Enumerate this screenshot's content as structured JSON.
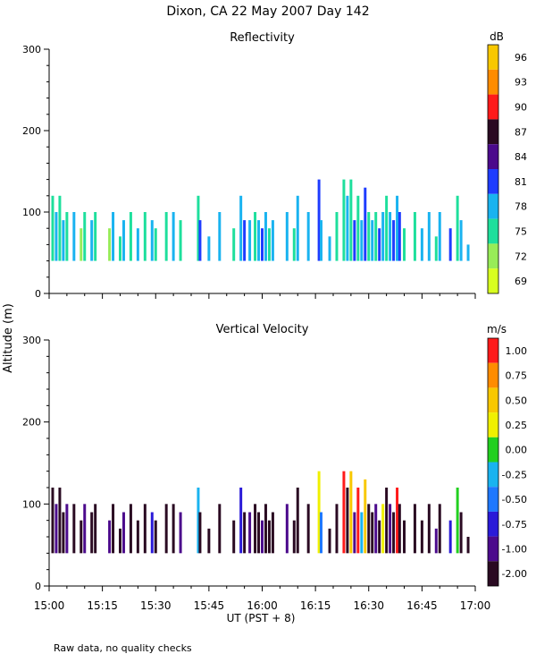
{
  "title": "Dixon, CA 22 May 2007  Day 142",
  "footnote": "Raw data, no quality checks",
  "y_axis_label": "Altitude (m)",
  "x_axis_label": "UT  (PST + 8)",
  "x_ticks": [
    "15:00",
    "15:15",
    "15:30",
    "15:45",
    "16:00",
    "16:15",
    "16:30",
    "16:45",
    "17:00"
  ],
  "chart_data": [
    {
      "type": "heatmap",
      "title": "Reflectivity",
      "ylabel": "Altitude (m)",
      "xlabel": "UT  (PST + 8)",
      "x_range_minutes": [
        0,
        120
      ],
      "ylim": [
        0,
        300
      ],
      "y_ticks": [
        "300",
        "200",
        "100",
        "0"
      ],
      "colorbar": {
        "unit": "dB",
        "labels": [
          "96",
          "93",
          "90",
          "87",
          "84",
          "81",
          "78",
          "75",
          "72",
          "69"
        ],
        "colors": [
          "#f8c800",
          "#ff8c00",
          "#ff1a1a",
          "#2a0a22",
          "#4b0a8c",
          "#1e3cff",
          "#19b3f0",
          "#1edf9c",
          "#98ec58",
          "#d8ff20"
        ]
      },
      "columns": [
        {
          "t": 1,
          "top": 120,
          "cat": 7
        },
        {
          "t": 2,
          "top": 100,
          "cat": 6
        },
        {
          "t": 3,
          "top": 120,
          "cat": 7
        },
        {
          "t": 4,
          "top": 90,
          "cat": 6
        },
        {
          "t": 5,
          "top": 100,
          "cat": 7
        },
        {
          "t": 7,
          "top": 100,
          "cat": 6
        },
        {
          "t": 9,
          "top": 80,
          "cat": 8
        },
        {
          "t": 10,
          "top": 100,
          "cat": 7
        },
        {
          "t": 12,
          "top": 90,
          "cat": 6
        },
        {
          "t": 13,
          "top": 100,
          "cat": 7
        },
        {
          "t": 17,
          "top": 80,
          "cat": 8
        },
        {
          "t": 18,
          "top": 100,
          "cat": 6
        },
        {
          "t": 20,
          "top": 70,
          "cat": 7
        },
        {
          "t": 21,
          "top": 90,
          "cat": 6
        },
        {
          "t": 23,
          "top": 100,
          "cat": 7
        },
        {
          "t": 25,
          "top": 80,
          "cat": 6
        },
        {
          "t": 27,
          "top": 100,
          "cat": 7
        },
        {
          "t": 29,
          "top": 90,
          "cat": 6
        },
        {
          "t": 30,
          "top": 80,
          "cat": 7
        },
        {
          "t": 33,
          "top": 100,
          "cat": 7
        },
        {
          "t": 35,
          "top": 100,
          "cat": 6
        },
        {
          "t": 37,
          "top": 90,
          "cat": 7
        },
        {
          "t": 42,
          "top": 120,
          "cat": 7
        },
        {
          "t": 42.5,
          "top": 90,
          "cat": 5
        },
        {
          "t": 45,
          "top": 70,
          "cat": 6
        },
        {
          "t": 48,
          "top": 100,
          "cat": 6
        },
        {
          "t": 52,
          "top": 80,
          "cat": 7
        },
        {
          "t": 54,
          "top": 120,
          "cat": 6
        },
        {
          "t": 55,
          "top": 90,
          "cat": 5
        },
        {
          "t": 56.5,
          "top": 90,
          "cat": 6
        },
        {
          "t": 58,
          "top": 100,
          "cat": 7
        },
        {
          "t": 59,
          "top": 90,
          "cat": 6
        },
        {
          "t": 60,
          "top": 80,
          "cat": 5
        },
        {
          "t": 61,
          "top": 100,
          "cat": 6
        },
        {
          "t": 62,
          "top": 80,
          "cat": 7
        },
        {
          "t": 63,
          "top": 90,
          "cat": 6
        },
        {
          "t": 67,
          "top": 100,
          "cat": 6
        },
        {
          "t": 69,
          "top": 80,
          "cat": 7
        },
        {
          "t": 70,
          "top": 120,
          "cat": 6
        },
        {
          "t": 73,
          "top": 100,
          "cat": 6
        },
        {
          "t": 76,
          "top": 140,
          "cat": 5
        },
        {
          "t": 76.6,
          "top": 90,
          "cat": 6
        },
        {
          "t": 79,
          "top": 70,
          "cat": 6
        },
        {
          "t": 81,
          "top": 100,
          "cat": 7
        },
        {
          "t": 83,
          "top": 140,
          "cat": 7
        },
        {
          "t": 84,
          "top": 120,
          "cat": 6
        },
        {
          "t": 85,
          "top": 140,
          "cat": 7
        },
        {
          "t": 86,
          "top": 90,
          "cat": 5
        },
        {
          "t": 87,
          "top": 120,
          "cat": 7
        },
        {
          "t": 88,
          "top": 90,
          "cat": 6
        },
        {
          "t": 89,
          "top": 130,
          "cat": 5
        },
        {
          "t": 90,
          "top": 100,
          "cat": 7
        },
        {
          "t": 91,
          "top": 90,
          "cat": 6
        },
        {
          "t": 92,
          "top": 100,
          "cat": 7
        },
        {
          "t": 93,
          "top": 80,
          "cat": 5
        },
        {
          "t": 94,
          "top": 100,
          "cat": 6
        },
        {
          "t": 95,
          "top": 120,
          "cat": 7
        },
        {
          "t": 96,
          "top": 100,
          "cat": 6
        },
        {
          "t": 97,
          "top": 90,
          "cat": 5
        },
        {
          "t": 98,
          "top": 120,
          "cat": 6
        },
        {
          "t": 98.7,
          "top": 100,
          "cat": 5
        },
        {
          "t": 100,
          "top": 80,
          "cat": 7
        },
        {
          "t": 103,
          "top": 100,
          "cat": 7
        },
        {
          "t": 105,
          "top": 80,
          "cat": 6
        },
        {
          "t": 107,
          "top": 100,
          "cat": 6
        },
        {
          "t": 109,
          "top": 70,
          "cat": 7
        },
        {
          "t": 110,
          "top": 100,
          "cat": 6
        },
        {
          "t": 113,
          "top": 80,
          "cat": 5
        },
        {
          "t": 115,
          "top": 120,
          "cat": 7
        },
        {
          "t": 116,
          "top": 90,
          "cat": 6
        },
        {
          "t": 118,
          "top": 60,
          "cat": 6
        }
      ]
    },
    {
      "type": "heatmap",
      "title": "Vertical Velocity",
      "ylabel": "Altitude (m)",
      "xlabel": "UT  (PST + 8)",
      "x_range_minutes": [
        0,
        120
      ],
      "ylim": [
        0,
        300
      ],
      "y_ticks": [
        "300",
        "200",
        "100",
        "0"
      ],
      "colorbar": {
        "unit": "m/s",
        "labels": [
          "1.00",
          "0.75",
          "0.50",
          "0.25",
          "0.00",
          "-0.25",
          "-0.50",
          "-0.75",
          "-1.00",
          "-2.00"
        ],
        "colors": [
          "#ff1a1a",
          "#ff8c00",
          "#f8c800",
          "#f0f000",
          "#22d020",
          "#19b3f0",
          "#1e78ff",
          "#2a1ad8",
          "#4b0a8c",
          "#2a0a22"
        ]
      },
      "columns": [
        {
          "t": 1,
          "top": 120,
          "cat": 9
        },
        {
          "t": 2,
          "top": 100,
          "cat": 8
        },
        {
          "t": 3,
          "top": 120,
          "cat": 9
        },
        {
          "t": 4,
          "top": 90,
          "cat": 9
        },
        {
          "t": 5,
          "top": 100,
          "cat": 8
        },
        {
          "t": 7,
          "top": 100,
          "cat": 9
        },
        {
          "t": 9,
          "top": 80,
          "cat": 9
        },
        {
          "t": 10,
          "top": 100,
          "cat": 8
        },
        {
          "t": 12,
          "top": 90,
          "cat": 9
        },
        {
          "t": 13,
          "top": 100,
          "cat": 9
        },
        {
          "t": 17,
          "top": 80,
          "cat": 8
        },
        {
          "t": 18,
          "top": 100,
          "cat": 9
        },
        {
          "t": 20,
          "top": 70,
          "cat": 9
        },
        {
          "t": 21,
          "top": 90,
          "cat": 8
        },
        {
          "t": 23,
          "top": 100,
          "cat": 9
        },
        {
          "t": 25,
          "top": 80,
          "cat": 9
        },
        {
          "t": 27,
          "top": 100,
          "cat": 9
        },
        {
          "t": 29,
          "top": 90,
          "cat": 7
        },
        {
          "t": 30,
          "top": 80,
          "cat": 9
        },
        {
          "t": 33,
          "top": 100,
          "cat": 9
        },
        {
          "t": 35,
          "top": 100,
          "cat": 9
        },
        {
          "t": 37,
          "top": 90,
          "cat": 8
        },
        {
          "t": 42,
          "top": 120,
          "cat": 5
        },
        {
          "t": 42.5,
          "top": 90,
          "cat": 9
        },
        {
          "t": 45,
          "top": 70,
          "cat": 9
        },
        {
          "t": 48,
          "top": 100,
          "cat": 9
        },
        {
          "t": 52,
          "top": 80,
          "cat": 9
        },
        {
          "t": 54,
          "top": 120,
          "cat": 7
        },
        {
          "t": 55,
          "top": 90,
          "cat": 9
        },
        {
          "t": 56.5,
          "top": 90,
          "cat": 8
        },
        {
          "t": 58,
          "top": 100,
          "cat": 9
        },
        {
          "t": 59,
          "top": 90,
          "cat": 9
        },
        {
          "t": 60,
          "top": 80,
          "cat": 8
        },
        {
          "t": 61,
          "top": 100,
          "cat": 9
        },
        {
          "t": 62,
          "top": 80,
          "cat": 9
        },
        {
          "t": 63,
          "top": 90,
          "cat": 9
        },
        {
          "t": 67,
          "top": 100,
          "cat": 8
        },
        {
          "t": 69,
          "top": 80,
          "cat": 9
        },
        {
          "t": 70,
          "top": 120,
          "cat": 9
        },
        {
          "t": 73,
          "top": 100,
          "cat": 9
        },
        {
          "t": 76,
          "top": 140,
          "cat": 3
        },
        {
          "t": 76.6,
          "top": 90,
          "cat": 6
        },
        {
          "t": 79,
          "top": 70,
          "cat": 9
        },
        {
          "t": 81,
          "top": 100,
          "cat": 9
        },
        {
          "t": 83,
          "top": 140,
          "cat": 0
        },
        {
          "t": 84,
          "top": 120,
          "cat": 9
        },
        {
          "t": 85,
          "top": 140,
          "cat": 2
        },
        {
          "t": 86,
          "top": 90,
          "cat": 8
        },
        {
          "t": 87,
          "top": 120,
          "cat": 0
        },
        {
          "t": 88,
          "top": 90,
          "cat": 5
        },
        {
          "t": 89,
          "top": 130,
          "cat": 2
        },
        {
          "t": 90,
          "top": 100,
          "cat": 9
        },
        {
          "t": 91,
          "top": 90,
          "cat": 9
        },
        {
          "t": 92,
          "top": 100,
          "cat": 8
        },
        {
          "t": 93,
          "top": 80,
          "cat": 9
        },
        {
          "t": 94,
          "top": 100,
          "cat": 3
        },
        {
          "t": 95,
          "top": 120,
          "cat": 9
        },
        {
          "t": 96,
          "top": 100,
          "cat": 8
        },
        {
          "t": 97,
          "top": 90,
          "cat": 9
        },
        {
          "t": 98,
          "top": 120,
          "cat": 0
        },
        {
          "t": 98.7,
          "top": 100,
          "cat": 9
        },
        {
          "t": 100,
          "top": 80,
          "cat": 9
        },
        {
          "t": 103,
          "top": 100,
          "cat": 9
        },
        {
          "t": 105,
          "top": 80,
          "cat": 9
        },
        {
          "t": 107,
          "top": 100,
          "cat": 9
        },
        {
          "t": 109,
          "top": 70,
          "cat": 8
        },
        {
          "t": 110,
          "top": 100,
          "cat": 9
        },
        {
          "t": 113,
          "top": 80,
          "cat": 7
        },
        {
          "t": 115,
          "top": 120,
          "cat": 4
        },
        {
          "t": 116,
          "top": 90,
          "cat": 9
        },
        {
          "t": 118,
          "top": 60,
          "cat": 9
        }
      ]
    }
  ]
}
